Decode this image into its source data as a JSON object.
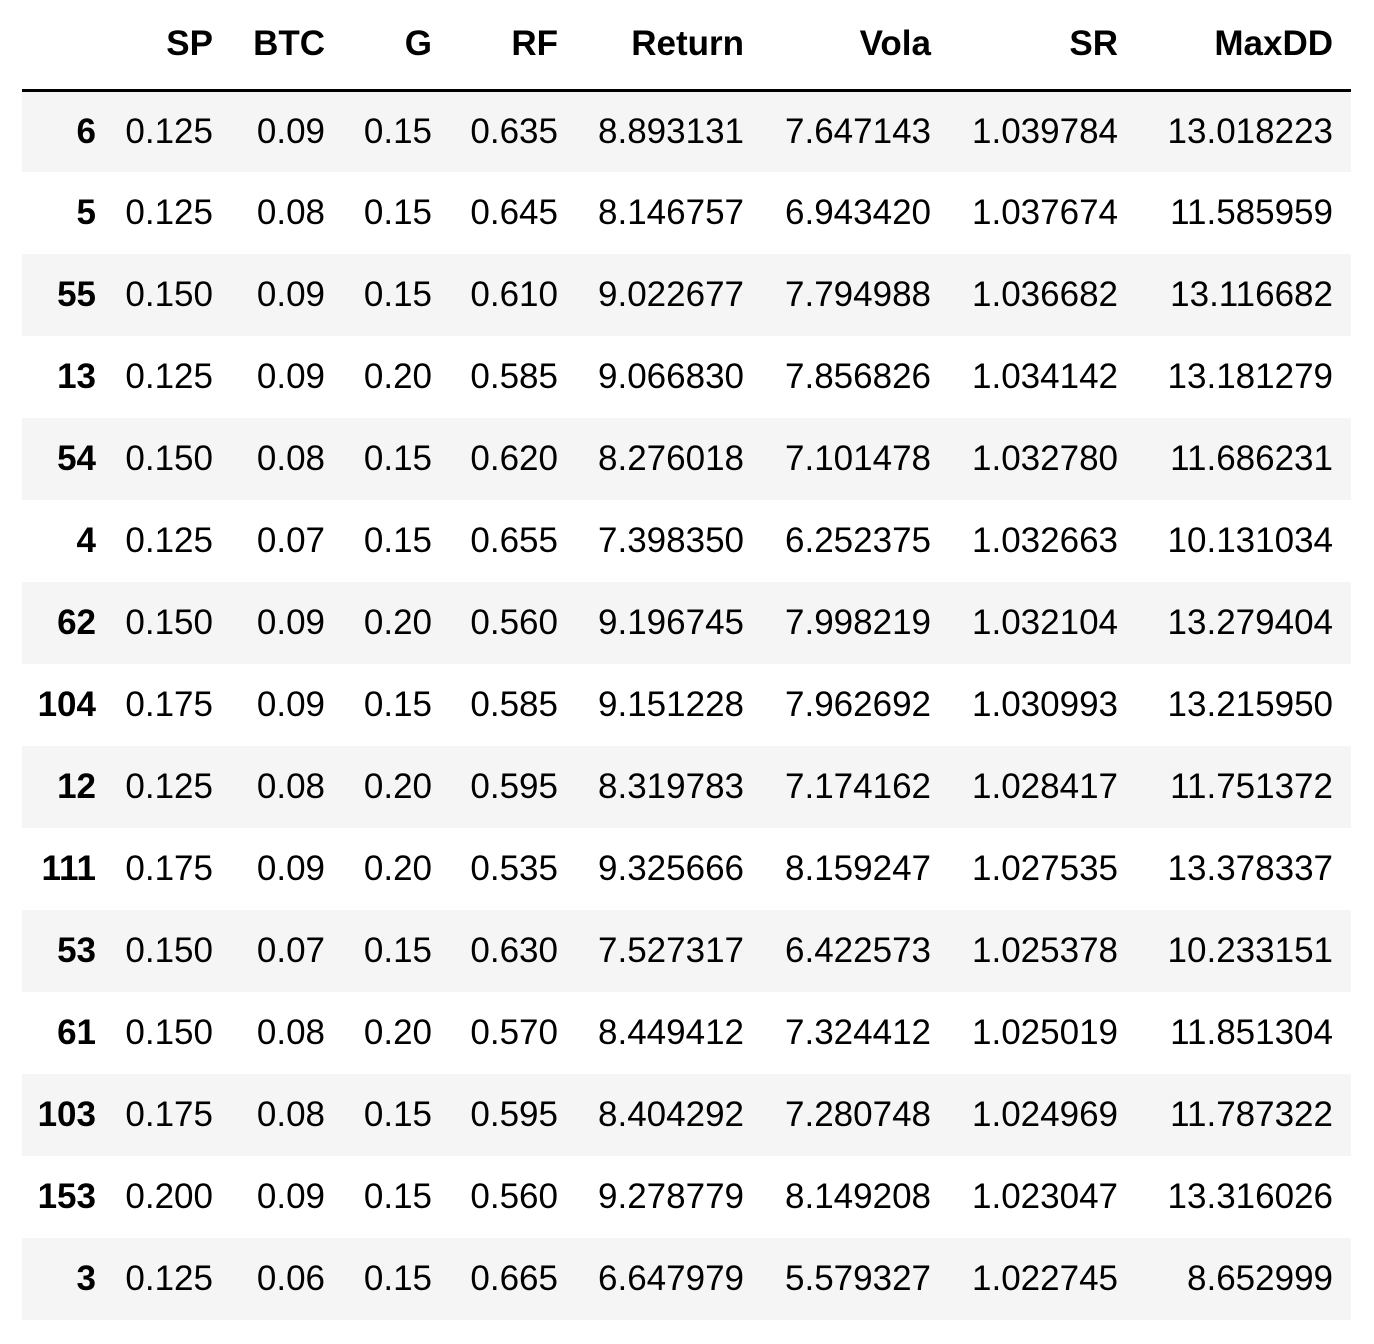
{
  "table": {
    "index_header": "",
    "columns": [
      "SP",
      "BTC",
      "G",
      "RF",
      "Return",
      "Vola",
      "SR",
      "MaxDD"
    ],
    "rows": [
      {
        "index": "6",
        "cells": [
          "0.125",
          "0.09",
          "0.15",
          "0.635",
          "8.893131",
          "7.647143",
          "1.039784",
          "13.018223"
        ]
      },
      {
        "index": "5",
        "cells": [
          "0.125",
          "0.08",
          "0.15",
          "0.645",
          "8.146757",
          "6.943420",
          "1.037674",
          "11.585959"
        ]
      },
      {
        "index": "55",
        "cells": [
          "0.150",
          "0.09",
          "0.15",
          "0.610",
          "9.022677",
          "7.794988",
          "1.036682",
          "13.116682"
        ]
      },
      {
        "index": "13",
        "cells": [
          "0.125",
          "0.09",
          "0.20",
          "0.585",
          "9.066830",
          "7.856826",
          "1.034142",
          "13.181279"
        ]
      },
      {
        "index": "54",
        "cells": [
          "0.150",
          "0.08",
          "0.15",
          "0.620",
          "8.276018",
          "7.101478",
          "1.032780",
          "11.686231"
        ]
      },
      {
        "index": "4",
        "cells": [
          "0.125",
          "0.07",
          "0.15",
          "0.655",
          "7.398350",
          "6.252375",
          "1.032663",
          "10.131034"
        ]
      },
      {
        "index": "62",
        "cells": [
          "0.150",
          "0.09",
          "0.20",
          "0.560",
          "9.196745",
          "7.998219",
          "1.032104",
          "13.279404"
        ]
      },
      {
        "index": "104",
        "cells": [
          "0.175",
          "0.09",
          "0.15",
          "0.585",
          "9.151228",
          "7.962692",
          "1.030993",
          "13.215950"
        ]
      },
      {
        "index": "12",
        "cells": [
          "0.125",
          "0.08",
          "0.20",
          "0.595",
          "8.319783",
          "7.174162",
          "1.028417",
          "11.751372"
        ]
      },
      {
        "index": "111",
        "cells": [
          "0.175",
          "0.09",
          "0.20",
          "0.535",
          "9.325666",
          "8.159247",
          "1.027535",
          "13.378337"
        ]
      },
      {
        "index": "53",
        "cells": [
          "0.150",
          "0.07",
          "0.15",
          "0.630",
          "7.527317",
          "6.422573",
          "1.025378",
          "10.233151"
        ]
      },
      {
        "index": "61",
        "cells": [
          "0.150",
          "0.08",
          "0.20",
          "0.570",
          "8.449412",
          "7.324412",
          "1.025019",
          "11.851304"
        ]
      },
      {
        "index": "103",
        "cells": [
          "0.175",
          "0.08",
          "0.15",
          "0.595",
          "8.404292",
          "7.280748",
          "1.024969",
          "11.787322"
        ]
      },
      {
        "index": "153",
        "cells": [
          "0.200",
          "0.09",
          "0.15",
          "0.560",
          "9.278779",
          "8.149208",
          "1.023047",
          "13.316026"
        ]
      },
      {
        "index": "3",
        "cells": [
          "0.125",
          "0.06",
          "0.15",
          "0.665",
          "6.647979",
          "5.579327",
          "1.022745",
          "8.652999"
        ]
      }
    ]
  },
  "colors": {
    "text": "#000000",
    "stripe": "#f5f5f5",
    "background": "#ffffff",
    "header_rule": "#000000"
  }
}
